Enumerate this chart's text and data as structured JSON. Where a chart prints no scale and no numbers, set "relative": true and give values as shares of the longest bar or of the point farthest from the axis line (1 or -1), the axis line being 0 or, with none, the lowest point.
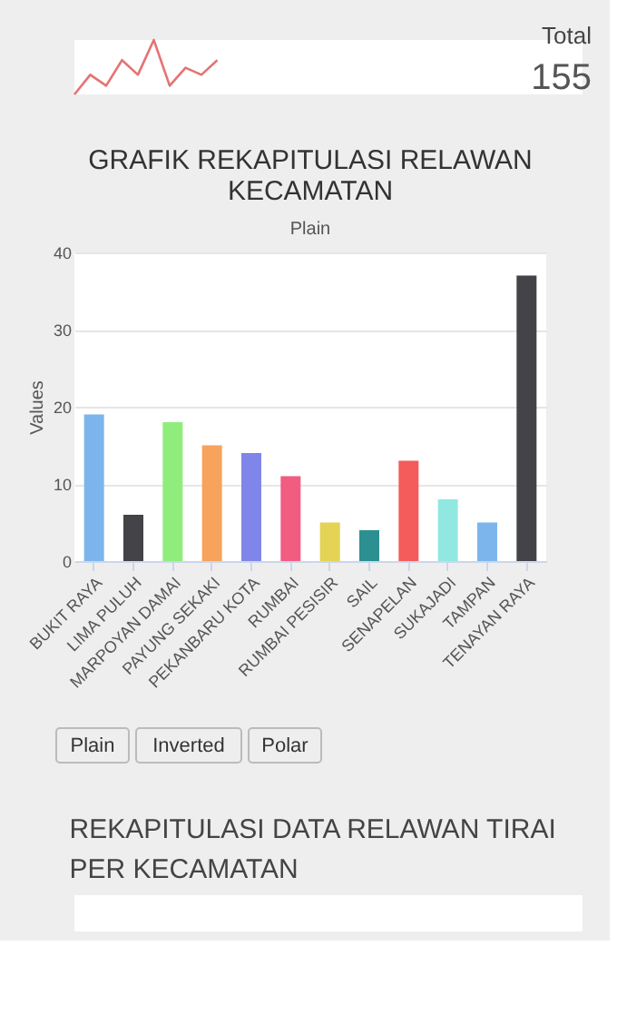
{
  "chart_data": [
    {
      "type": "line",
      "relative": true,
      "categories": [
        null,
        null,
        null,
        null,
        null,
        null,
        null,
        null,
        null,
        null
      ],
      "values": [
        0,
        0.36,
        0.16,
        0.63,
        0.36,
        1,
        0.16,
        0.49,
        0.36,
        0.63
      ],
      "color": "#e57373",
      "marker": "none",
      "annotations": [
        "Total",
        "155"
      ]
    },
    {
      "type": "bar",
      "title": "GRAFIK REKAPITULASI RELAWAN KECAMATAN",
      "subtitle": "Plain",
      "ylabel": "Values",
      "categories": [
        "BUKIT RAYA",
        "LIMA PULUH",
        "MARPOYAN DAMAI",
        "PAYUNG SEKAKI",
        "PEKANBARU KOTA",
        "RUMBAI",
        "RUMBAI PESISIR",
        "SAIL",
        "SENAPELAN",
        "SUKAJADI",
        "TAMPAN",
        "TENAYAN RAYA"
      ],
      "values": [
        19,
        6,
        18,
        15,
        14,
        11,
        5,
        4,
        13,
        8,
        5,
        37
      ],
      "colors": [
        "#7cb5ec",
        "#434348",
        "#90ed7d",
        "#f7a35c",
        "#8085e9",
        "#f15c80",
        "#e4d354",
        "#2b908f",
        "#f45b5b",
        "#91e8e1",
        "#7cb5ec",
        "#434348"
      ],
      "ylim": [
        0,
        40
      ],
      "yticks": [
        0,
        10,
        20,
        30,
        40
      ],
      "grid": "y",
      "annotations": [
        "Plain",
        "Inverted",
        "Polar"
      ]
    },
    {
      "type": "other",
      "title": "REKAPITULASI DATA RELAWAN TIRAI PER KECAMATAN"
    }
  ]
}
